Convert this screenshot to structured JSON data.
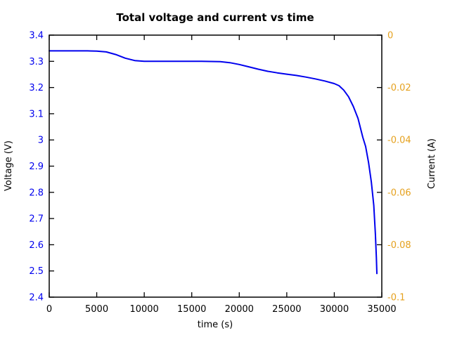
{
  "title": "Total voltage and current vs time",
  "colors": {
    "background": "#ffffff",
    "border": "#000000",
    "voltage_series": "#0000EE",
    "voltage_tick_labels": "#0000EE",
    "current_tick_labels": "#E5A11E",
    "x_tick_labels": "#000000"
  },
  "chart_data": {
    "type": "line",
    "title": "Total voltage and current vs time",
    "xlabel": "time (s)",
    "ylabel": "Voltage (V)",
    "y2label": "Current (A)",
    "xlim": [
      0,
      35000
    ],
    "ylim": [
      2.4,
      3.4
    ],
    "y2lim": [
      -0.1,
      0
    ],
    "grid": false,
    "legend": "none",
    "xtick_labels": [
      "0",
      "5000",
      "10000",
      "15000",
      "20000",
      "25000",
      "30000",
      "35000"
    ],
    "ytick_labels": [
      "3.4",
      "3.3",
      "3.2",
      "3.1",
      "3",
      "2.9",
      "2.8",
      "2.7",
      "2.6",
      "2.5",
      "2.4"
    ],
    "y2tick_labels": [
      "0",
      "-0.02",
      "-0.04",
      "-0.06",
      "-0.08",
      "-0.1"
    ],
    "series": [
      {
        "name": "Voltage (V)",
        "axis": "left",
        "color": "#0000EE",
        "x": [
          0,
          1000,
          2000,
          3000,
          4000,
          5000,
          6000,
          7000,
          8000,
          9000,
          10000,
          11000,
          12000,
          14000,
          16000,
          18000,
          19000,
          20000,
          21000,
          22000,
          23000,
          24000,
          25000,
          26000,
          27000,
          28000,
          29000,
          30000,
          30500,
          31000,
          31500,
          32000,
          32500,
          33000,
          33300,
          33600,
          33900,
          34160,
          34330,
          34430,
          34480
        ],
        "y": [
          3.34,
          3.34,
          3.34,
          3.34,
          3.34,
          3.339,
          3.336,
          3.326,
          3.312,
          3.303,
          3.3,
          3.3,
          3.3,
          3.3,
          3.3,
          3.299,
          3.295,
          3.288,
          3.279,
          3.27,
          3.262,
          3.256,
          3.251,
          3.246,
          3.24,
          3.233,
          3.225,
          3.215,
          3.207,
          3.19,
          3.165,
          3.128,
          3.082,
          3.01,
          2.975,
          2.915,
          2.84,
          2.75,
          2.64,
          2.55,
          2.49
        ]
      }
    ]
  }
}
